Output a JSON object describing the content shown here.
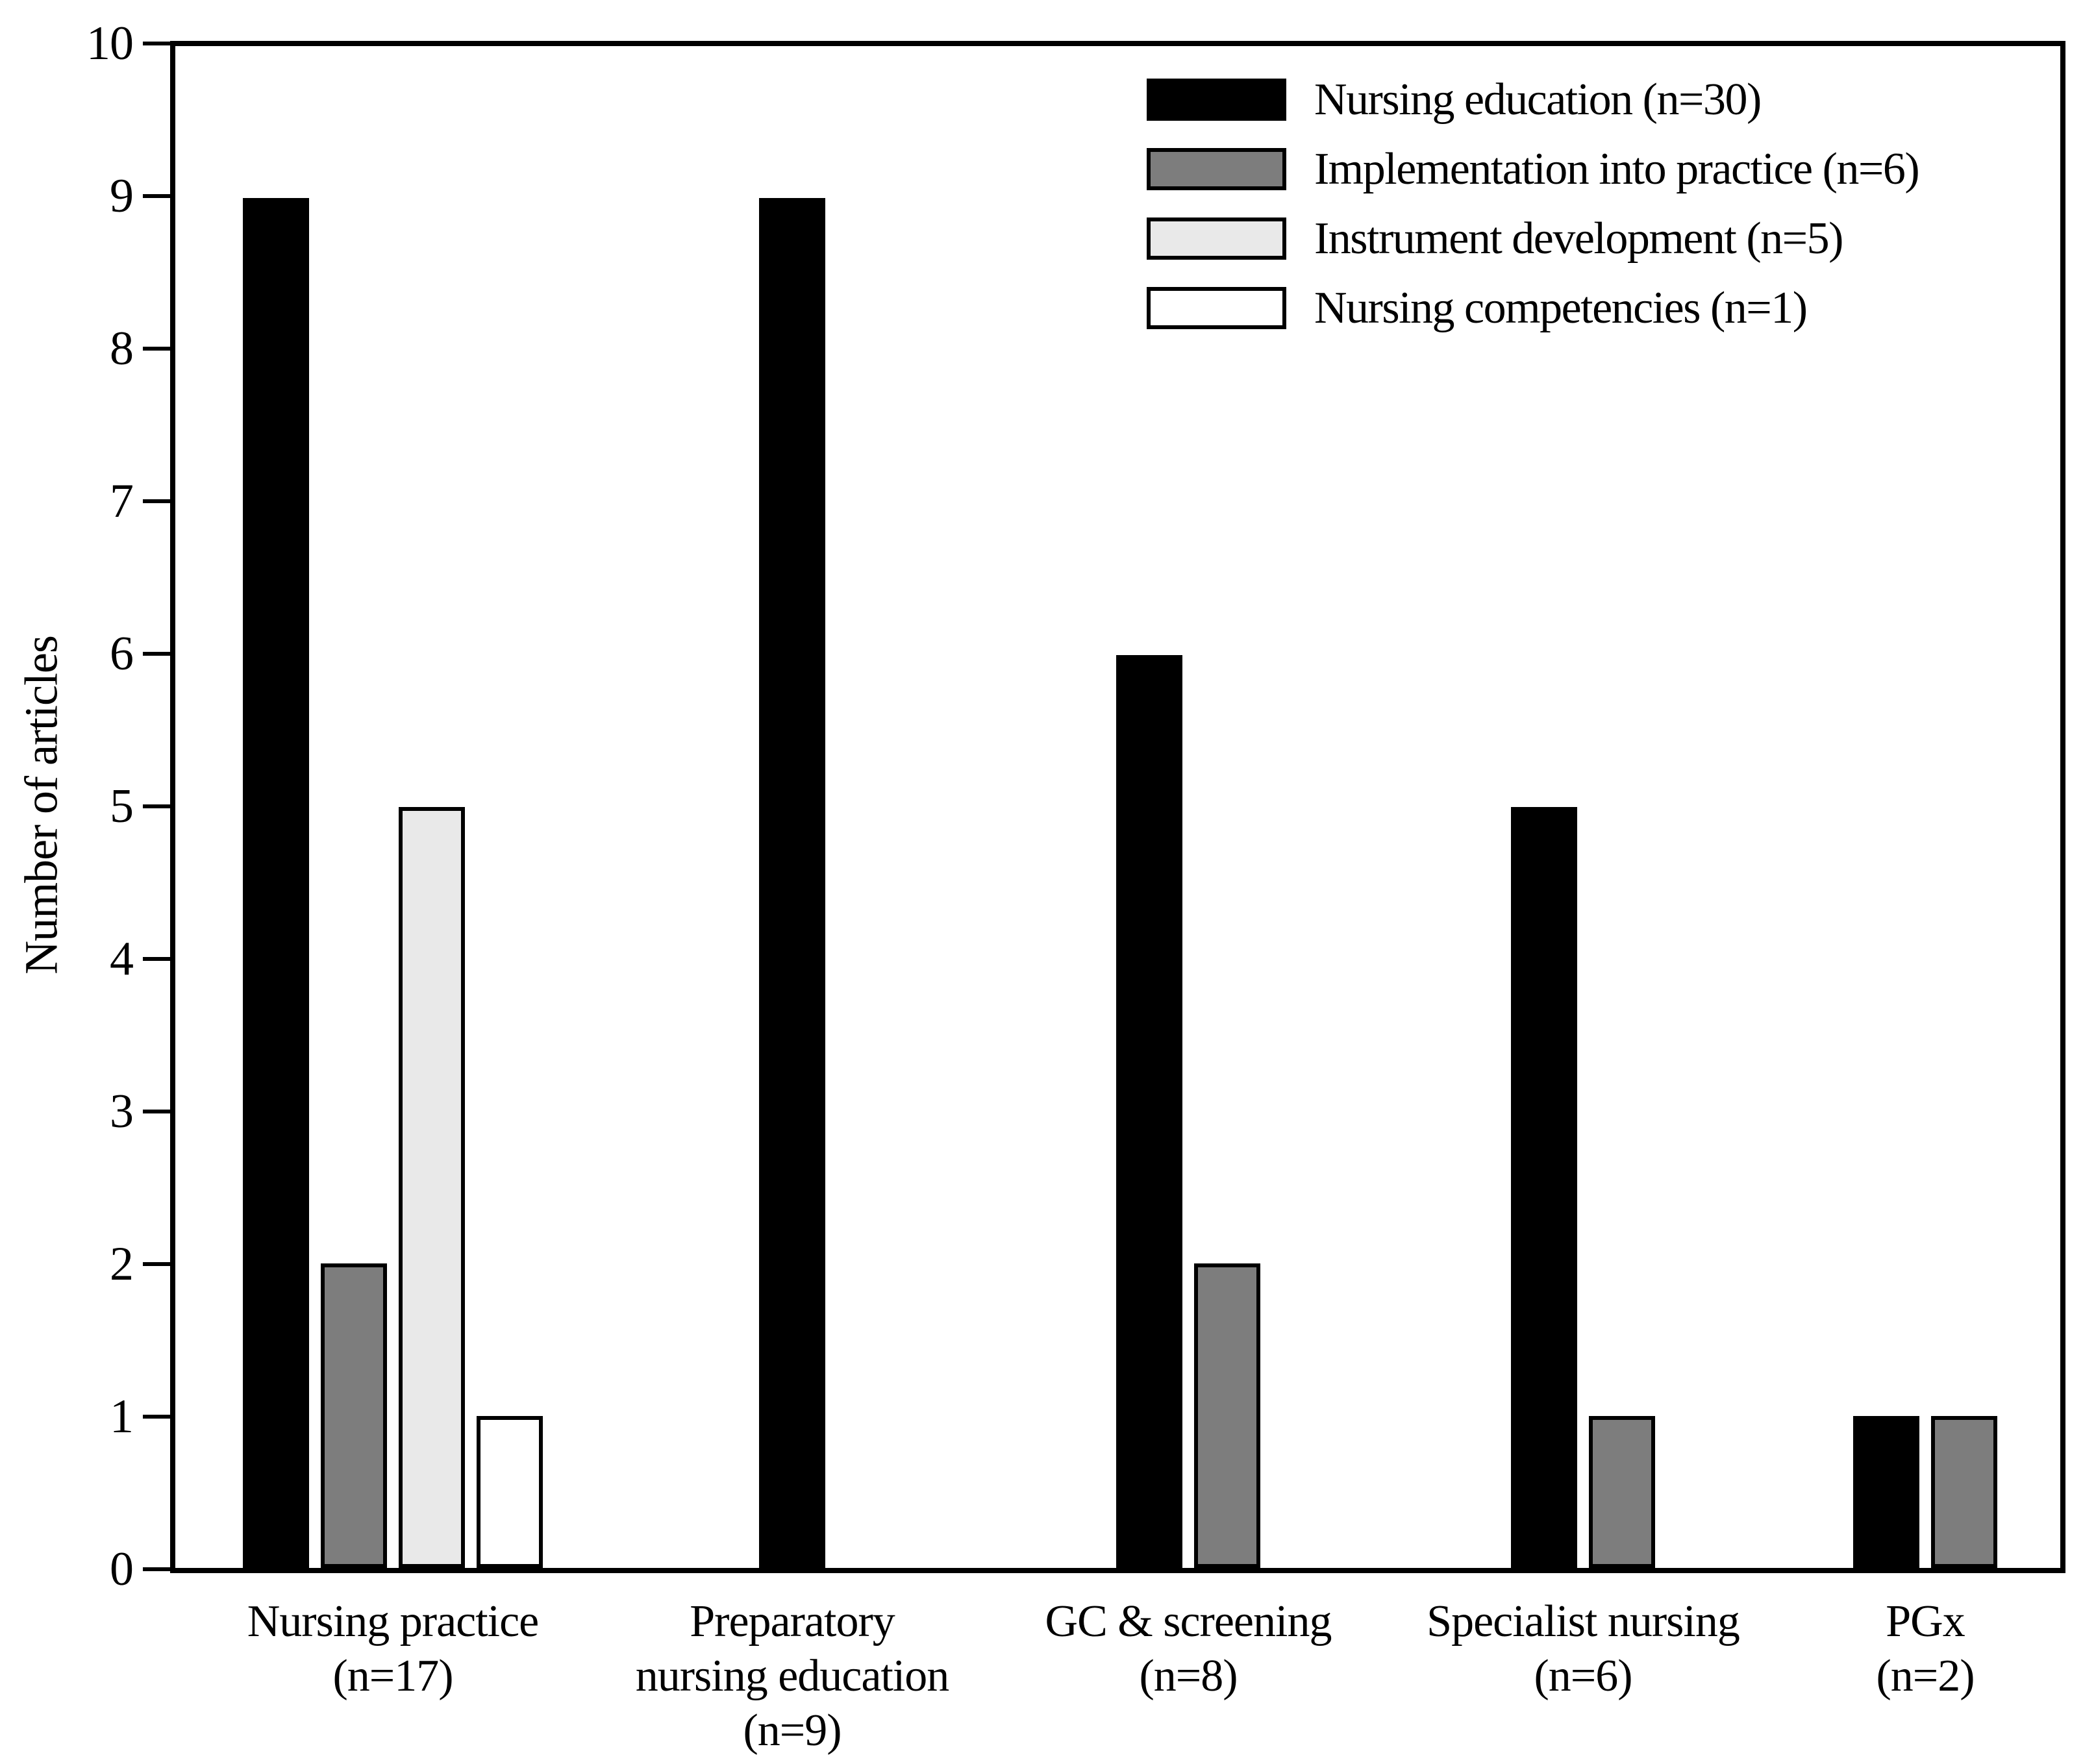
{
  "chart_data": {
    "type": "bar",
    "title": "",
    "xlabel": "",
    "ylabel": "Number of articles",
    "ylim": [
      0,
      10
    ],
    "yticks": [
      0,
      1,
      2,
      3,
      4,
      5,
      6,
      7,
      8,
      9,
      10
    ],
    "grid": false,
    "plot_frame": "full-box",
    "legend_position": "top-right-inside",
    "background_color": "#ffffff",
    "axis_color": "#000000",
    "bar_outline_color": "#000000",
    "categories": [
      "Nursing practice (n=17)",
      "Preparatory nursing education (n=9)",
      "GC & screening (n=8)",
      "Specialist nursing (n=6)",
      "PGx (n=2)"
    ],
    "category_label_lines": [
      [
        "Nursing practice",
        "(n=17)"
      ],
      [
        "Preparatory",
        "nursing education",
        "(n=9)"
      ],
      [
        "GC & screening",
        "(n=8)"
      ],
      [
        "Specialist nursing",
        "(n=6)"
      ],
      [
        "PGx",
        "(n=2)"
      ]
    ],
    "series": [
      {
        "name": "Nursing education (n=30)",
        "color": "#000000",
        "values": [
          9,
          9,
          6,
          5,
          1
        ]
      },
      {
        "name": "Implementation into practice (n=6)",
        "color": "#7d7d7d",
        "values": [
          2,
          0,
          2,
          1,
          1
        ]
      },
      {
        "name": "Instrument development (n=5)",
        "color": "#e9e9e9",
        "values": [
          5,
          0,
          0,
          0,
          0
        ]
      },
      {
        "name": "Nursing competencies (n=1)",
        "color": "#ffffff",
        "values": [
          1,
          0,
          0,
          0,
          0
        ]
      }
    ]
  }
}
